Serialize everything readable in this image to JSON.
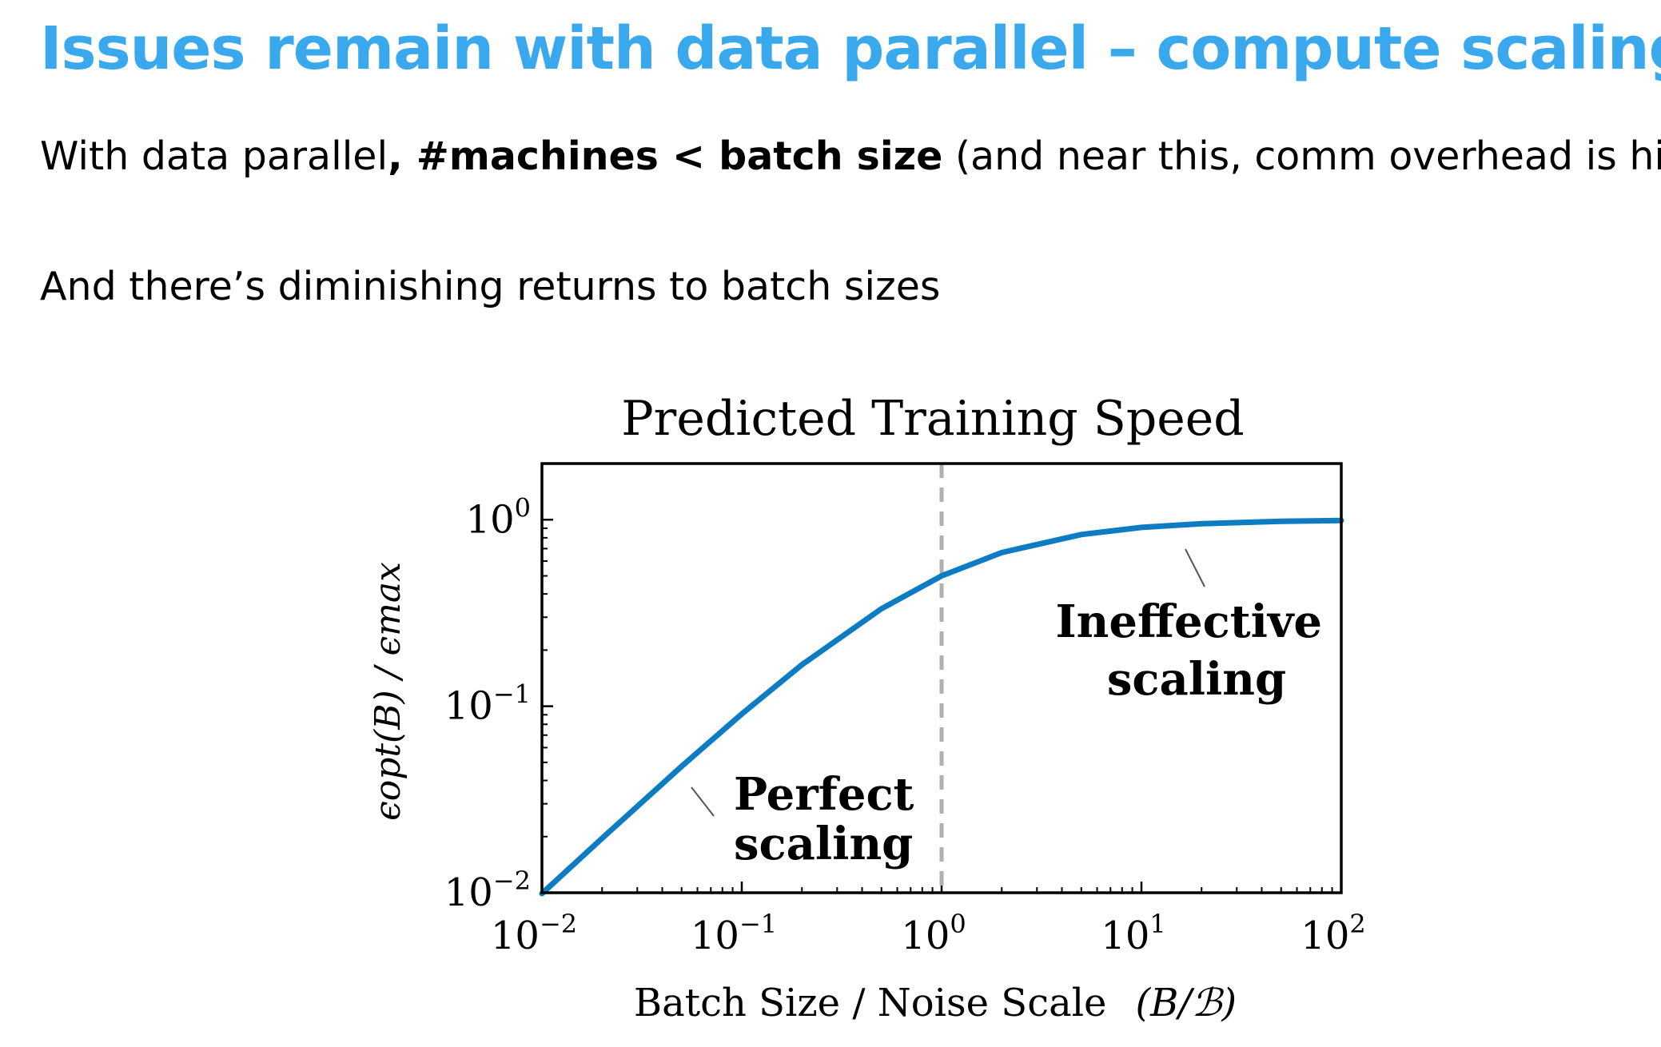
{
  "slide": {
    "title": "Issues remain with data parallel – compute scaling",
    "line1_prefix": "With data parallel",
    "line1_bold": ", #machines < batch size",
    "line1_suffix": " (and near this, comm overhead is high)",
    "line2": "And there’s diminishing returns to batch sizes"
  },
  "chart_data": {
    "type": "line",
    "title": "Predicted Training Speed",
    "xlabel": "Batch Size / Noise Scale",
    "xlabel_expr": "(B/ℬ)",
    "ylabel": "ϵopt(B) / ϵmax",
    "xscale": "log",
    "yscale": "log",
    "xlim": [
      0.01,
      100
    ],
    "ylim": [
      0.01,
      2
    ],
    "x_ticks": [
      {
        "value": 0.01,
        "base": "10",
        "exp": "−2"
      },
      {
        "value": 0.1,
        "base": "10",
        "exp": "−1"
      },
      {
        "value": 1,
        "base": "10",
        "exp": "0"
      },
      {
        "value": 10,
        "base": "10",
        "exp": "1"
      },
      {
        "value": 100,
        "base": "10",
        "exp": "2"
      }
    ],
    "y_ticks": [
      {
        "value": 0.01,
        "base": "10",
        "exp": "−2"
      },
      {
        "value": 0.1,
        "base": "10",
        "exp": "−1"
      },
      {
        "value": 1,
        "base": "10",
        "exp": "0"
      }
    ],
    "series": [
      {
        "color": "#0d7cc3",
        "x": [
          0.01,
          0.02,
          0.05,
          0.1,
          0.2,
          0.5,
          1,
          2,
          5,
          10,
          20,
          50,
          100
        ],
        "y": [
          0.0099,
          0.0196,
          0.0476,
          0.0909,
          0.167,
          0.333,
          0.5,
          0.667,
          0.833,
          0.909,
          0.952,
          0.98,
          0.99
        ]
      }
    ],
    "vline": {
      "x": 1,
      "color": "#b0b0b0",
      "style": "dashed"
    },
    "annotations": [
      {
        "text_lines": [
          "Perfect",
          "scaling"
        ],
        "region": "left"
      },
      {
        "text_lines": [
          "Ineffective",
          "scaling"
        ],
        "region": "right"
      }
    ]
  }
}
